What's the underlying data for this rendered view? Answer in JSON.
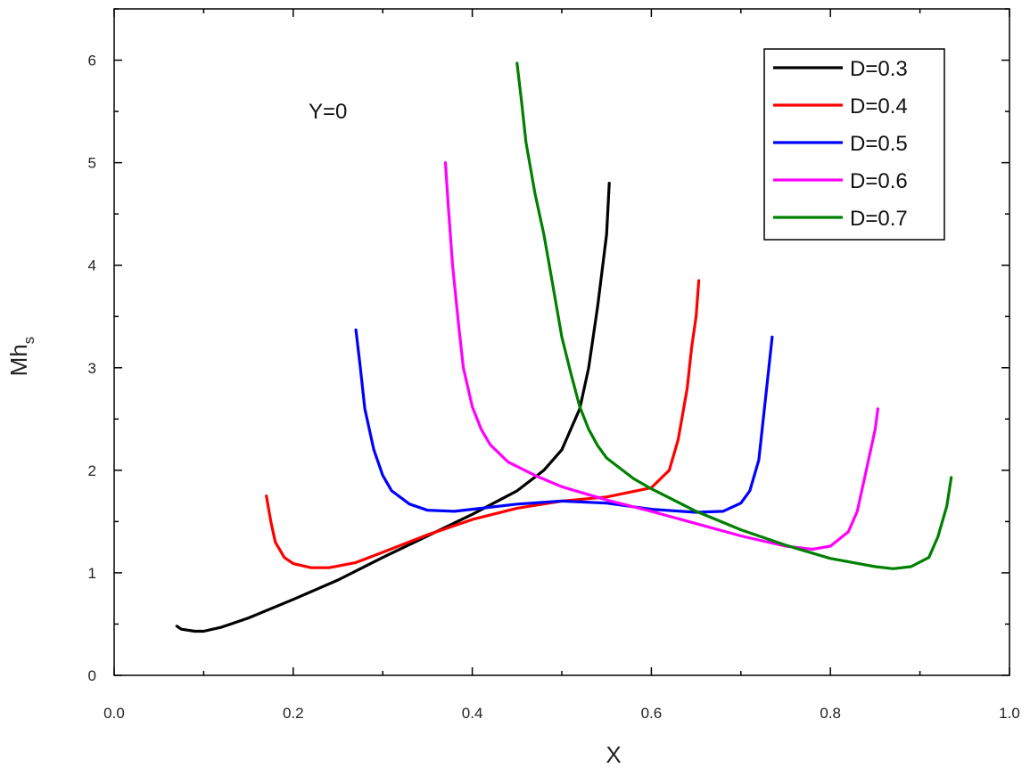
{
  "chart_data": {
    "type": "line",
    "title": "",
    "xlabel": "X",
    "ylabel_main": "Mh",
    "ylabel_sub": "s",
    "xlim": [
      0.0,
      1.0
    ],
    "ylim": [
      0,
      6.5
    ],
    "x_ticks": [
      "0.0",
      "0.2",
      "0.4",
      "0.6",
      "0.8",
      "1.0"
    ],
    "y_ticks": [
      "0",
      "1",
      "2",
      "3",
      "4",
      "5",
      "6"
    ],
    "grid": false,
    "legend_position": "top-right",
    "annotation": "Y=0",
    "series": [
      {
        "name": "D=0.3",
        "color": "#000000",
        "points": [
          [
            0.07,
            0.48
          ],
          [
            0.075,
            0.45
          ],
          [
            0.09,
            0.43
          ],
          [
            0.1,
            0.43
          ],
          [
            0.12,
            0.47
          ],
          [
            0.15,
            0.56
          ],
          [
            0.2,
            0.74
          ],
          [
            0.25,
            0.93
          ],
          [
            0.3,
            1.15
          ],
          [
            0.35,
            1.36
          ],
          [
            0.4,
            1.57
          ],
          [
            0.45,
            1.8
          ],
          [
            0.48,
            2.0
          ],
          [
            0.5,
            2.2
          ],
          [
            0.52,
            2.6
          ],
          [
            0.53,
            3.0
          ],
          [
            0.54,
            3.6
          ],
          [
            0.55,
            4.3
          ],
          [
            0.553,
            4.8
          ]
        ]
      },
      {
        "name": "D=0.4",
        "color": "#ff0000",
        "points": [
          [
            0.17,
            1.75
          ],
          [
            0.175,
            1.5
          ],
          [
            0.18,
            1.3
          ],
          [
            0.19,
            1.15
          ],
          [
            0.2,
            1.09
          ],
          [
            0.22,
            1.05
          ],
          [
            0.24,
            1.05
          ],
          [
            0.27,
            1.1
          ],
          [
            0.3,
            1.2
          ],
          [
            0.35,
            1.37
          ],
          [
            0.4,
            1.52
          ],
          [
            0.45,
            1.63
          ],
          [
            0.5,
            1.7
          ],
          [
            0.55,
            1.74
          ],
          [
            0.6,
            1.83
          ],
          [
            0.62,
            2.0
          ],
          [
            0.63,
            2.3
          ],
          [
            0.64,
            2.8
          ],
          [
            0.645,
            3.2
          ],
          [
            0.65,
            3.5
          ],
          [
            0.653,
            3.85
          ]
        ]
      },
      {
        "name": "D=0.5",
        "color": "#0000ff",
        "points": [
          [
            0.27,
            3.37
          ],
          [
            0.275,
            3.0
          ],
          [
            0.28,
            2.6
          ],
          [
            0.29,
            2.2
          ],
          [
            0.3,
            1.95
          ],
          [
            0.31,
            1.8
          ],
          [
            0.33,
            1.67
          ],
          [
            0.35,
            1.61
          ],
          [
            0.38,
            1.6
          ],
          [
            0.4,
            1.62
          ],
          [
            0.45,
            1.67
          ],
          [
            0.5,
            1.7
          ],
          [
            0.55,
            1.68
          ],
          [
            0.6,
            1.62
          ],
          [
            0.65,
            1.59
          ],
          [
            0.68,
            1.6
          ],
          [
            0.7,
            1.68
          ],
          [
            0.71,
            1.8
          ],
          [
            0.72,
            2.1
          ],
          [
            0.725,
            2.5
          ],
          [
            0.73,
            2.9
          ],
          [
            0.735,
            3.3
          ]
        ]
      },
      {
        "name": "D=0.6",
        "color": "#ff00ff",
        "points": [
          [
            0.37,
            5.0
          ],
          [
            0.373,
            4.6
          ],
          [
            0.378,
            4.0
          ],
          [
            0.385,
            3.4
          ],
          [
            0.39,
            3.0
          ],
          [
            0.4,
            2.62
          ],
          [
            0.41,
            2.4
          ],
          [
            0.42,
            2.25
          ],
          [
            0.44,
            2.08
          ],
          [
            0.47,
            1.95
          ],
          [
            0.5,
            1.84
          ],
          [
            0.55,
            1.71
          ],
          [
            0.6,
            1.6
          ],
          [
            0.65,
            1.48
          ],
          [
            0.7,
            1.36
          ],
          [
            0.75,
            1.26
          ],
          [
            0.78,
            1.23
          ],
          [
            0.8,
            1.26
          ],
          [
            0.82,
            1.4
          ],
          [
            0.83,
            1.6
          ],
          [
            0.84,
            2.0
          ],
          [
            0.85,
            2.4
          ],
          [
            0.853,
            2.6
          ]
        ]
      },
      {
        "name": "D=0.7",
        "color": "#008000",
        "points": [
          [
            0.45,
            5.97
          ],
          [
            0.455,
            5.6
          ],
          [
            0.46,
            5.2
          ],
          [
            0.47,
            4.7
          ],
          [
            0.48,
            4.3
          ],
          [
            0.49,
            3.8
          ],
          [
            0.5,
            3.3
          ],
          [
            0.51,
            2.95
          ],
          [
            0.52,
            2.62
          ],
          [
            0.53,
            2.4
          ],
          [
            0.54,
            2.24
          ],
          [
            0.55,
            2.12
          ],
          [
            0.58,
            1.92
          ],
          [
            0.6,
            1.82
          ],
          [
            0.65,
            1.6
          ],
          [
            0.7,
            1.42
          ],
          [
            0.75,
            1.27
          ],
          [
            0.8,
            1.14
          ],
          [
            0.85,
            1.06
          ],
          [
            0.87,
            1.04
          ],
          [
            0.89,
            1.06
          ],
          [
            0.91,
            1.15
          ],
          [
            0.92,
            1.35
          ],
          [
            0.93,
            1.65
          ],
          [
            0.935,
            1.93
          ]
        ]
      }
    ]
  }
}
